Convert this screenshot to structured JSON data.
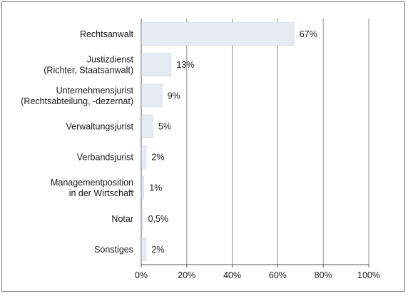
{
  "chart_data": {
    "type": "bar",
    "orientation": "horizontal",
    "categories": [
      [
        "Rechtsanwalt"
      ],
      [
        "Justizdienst",
        "(Richter, Staatsanwalt)"
      ],
      [
        "Unternehmensjurist",
        "(Rechtsabteilung, -dezernat)"
      ],
      [
        "Verwaltungsjurist"
      ],
      [
        "Verbandsjurist"
      ],
      [
        "Managementposition",
        "in der Wirtschaft"
      ],
      [
        "Notar"
      ],
      [
        "Sonstiges"
      ]
    ],
    "values": [
      67,
      13,
      9,
      5,
      2,
      1,
      0.5,
      2
    ],
    "value_labels": [
      "67%",
      "13%",
      "9%",
      "5%",
      "2%",
      "1%",
      "0,5%",
      "2%"
    ],
    "xlim": [
      0,
      100
    ],
    "xticks": [
      0,
      20,
      40,
      60,
      80,
      100
    ],
    "xtick_labels": [
      "0%",
      "20%",
      "40%",
      "60%",
      "80%",
      "100%"
    ],
    "grid": "vertical",
    "bar_color": "#e6eaf2",
    "bar_stroke": "#cfd6e3",
    "grid_color": "#8c8c8c",
    "axis_color": "#555555"
  }
}
